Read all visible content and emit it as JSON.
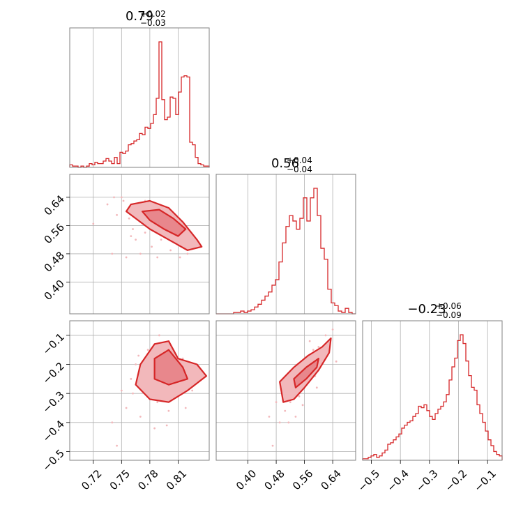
{
  "colors": {
    "accent": "#d62728",
    "fill_light": "#f2b8bb",
    "fill_mid": "#e8878c",
    "grid": "#b0b0b0",
    "frame": "#808080"
  },
  "chart_data": {
    "type": "corner",
    "parameters": [
      {
        "title_main": "0.79",
        "title_plus": "+0.02",
        "title_minus": "−0.03",
        "range": [
          0.695,
          0.843
        ],
        "ticks": [
          0.72,
          0.75,
          0.78,
          0.81
        ],
        "tick_labels": [
          "0.72",
          "0.75",
          "0.78",
          "0.81"
        ],
        "median": 0.79,
        "hist_counts": [
          2,
          1,
          1,
          0,
          1,
          0,
          1,
          3,
          2,
          4,
          3,
          3,
          5,
          7,
          5,
          3,
          8,
          3,
          12,
          11,
          13,
          18,
          19,
          21,
          22,
          27,
          26,
          32,
          31,
          35,
          42,
          55,
          100,
          54,
          38,
          40,
          56,
          55,
          42,
          60,
          72,
          73,
          72,
          20,
          18,
          8,
          3,
          2,
          1,
          1
        ]
      },
      {
        "title_main": "0.56",
        "title_plus": "+0.04",
        "title_minus": "−0.04",
        "range": [
          0.31,
          0.705
        ],
        "ticks": [
          0.4,
          0.48,
          0.56,
          0.64
        ],
        "tick_labels": [
          "0.40",
          "0.48",
          "0.56",
          "0.64"
        ],
        "median": 0.56,
        "hist_counts": [
          0,
          0,
          0,
          0,
          0,
          1,
          1,
          2,
          1,
          2,
          3,
          5,
          7,
          10,
          13,
          16,
          21,
          25,
          38,
          52,
          64,
          72,
          68,
          62,
          70,
          85,
          68,
          85,
          92,
          72,
          48,
          40,
          18,
          8,
          6,
          2,
          1,
          4,
          1,
          0
        ]
      },
      {
        "title_main": "−0.23",
        "title_plus": "+0.06",
        "title_minus": "−0.09",
        "range": [
          -0.53,
          -0.05
        ],
        "ticks": [
          -0.5,
          -0.4,
          -0.3,
          -0.2,
          -0.1
        ],
        "tick_labels": [
          "−0.5",
          "−0.4",
          "−0.3",
          "−0.2",
          "−0.1"
        ],
        "median": -0.23,
        "hist_counts": [
          1,
          1,
          2,
          3,
          4,
          2,
          3,
          5,
          7,
          11,
          12,
          14,
          16,
          18,
          22,
          24,
          26,
          27,
          30,
          32,
          37,
          36,
          38,
          34,
          30,
          28,
          32,
          35,
          37,
          40,
          45,
          55,
          64,
          70,
          82,
          86,
          80,
          68,
          58,
          50,
          48,
          38,
          32,
          26,
          20,
          14,
          10,
          6,
          4,
          3
        ]
      }
    ],
    "pairs": [
      {
        "x_param": 0,
        "y_param": 1,
        "correlation": -0.75,
        "scatter": [
          [
            0.72,
            0.565
          ],
          [
            0.735,
            0.62
          ],
          [
            0.74,
            0.48
          ],
          [
            0.745,
            0.59
          ],
          [
            0.75,
            0.64
          ],
          [
            0.755,
            0.47
          ],
          [
            0.758,
            0.58
          ],
          [
            0.76,
            0.6
          ],
          [
            0.762,
            0.55
          ],
          [
            0.765,
            0.52
          ],
          [
            0.77,
            0.62
          ],
          [
            0.772,
            0.57
          ],
          [
            0.775,
            0.54
          ],
          [
            0.78,
            0.6
          ],
          [
            0.782,
            0.5
          ],
          [
            0.785,
            0.56
          ],
          [
            0.79,
            0.58
          ],
          [
            0.792,
            0.52
          ],
          [
            0.795,
            0.55
          ],
          [
            0.8,
            0.56
          ],
          [
            0.802,
            0.49
          ],
          [
            0.805,
            0.53
          ],
          [
            0.81,
            0.51
          ],
          [
            0.813,
            0.55
          ],
          [
            0.815,
            0.5
          ],
          [
            0.82,
            0.48
          ],
          [
            0.825,
            0.52
          ],
          [
            0.83,
            0.5
          ],
          [
            0.742,
            0.64
          ],
          [
            0.752,
            0.63
          ],
          [
            0.77,
            0.48
          ],
          [
            0.788,
            0.47
          ],
          [
            0.8,
            0.61
          ],
          [
            0.812,
            0.47
          ],
          [
            0.76,
            0.53
          ],
          [
            0.775,
            0.63
          ]
        ],
        "contour_outer": [
          [
            0.76,
            0.62
          ],
          [
            0.78,
            0.63
          ],
          [
            0.8,
            0.61
          ],
          [
            0.815,
            0.57
          ],
          [
            0.83,
            0.52
          ],
          [
            0.835,
            0.5
          ],
          [
            0.82,
            0.49
          ],
          [
            0.8,
            0.52
          ],
          [
            0.78,
            0.55
          ],
          [
            0.765,
            0.58
          ],
          [
            0.755,
            0.6
          ]
        ],
        "contour_inner": [
          [
            0.772,
            0.6
          ],
          [
            0.79,
            0.605
          ],
          [
            0.805,
            0.58
          ],
          [
            0.818,
            0.55
          ],
          [
            0.81,
            0.53
          ],
          [
            0.795,
            0.55
          ],
          [
            0.78,
            0.575
          ]
        ]
      },
      {
        "x_param": 0,
        "y_param": 2,
        "correlation": -0.1,
        "scatter": [
          [
            0.74,
            -0.4
          ],
          [
            0.745,
            -0.48
          ],
          [
            0.75,
            -0.29
          ],
          [
            0.755,
            -0.35
          ],
          [
            0.76,
            -0.25
          ],
          [
            0.765,
            -0.2
          ],
          [
            0.77,
            -0.38
          ],
          [
            0.775,
            -0.3
          ],
          [
            0.778,
            -0.15
          ],
          [
            0.78,
            -0.24
          ],
          [
            0.785,
            -0.42
          ],
          [
            0.788,
            -0.33
          ],
          [
            0.79,
            -0.1
          ],
          [
            0.792,
            -0.2
          ],
          [
            0.795,
            -0.27
          ],
          [
            0.8,
            -0.36
          ],
          [
            0.805,
            -0.22
          ],
          [
            0.81,
            -0.31
          ],
          [
            0.815,
            -0.18
          ],
          [
            0.82,
            -0.25
          ],
          [
            0.825,
            -0.29
          ],
          [
            0.83,
            -0.21
          ],
          [
            0.772,
            -0.26
          ],
          [
            0.798,
            -0.41
          ],
          [
            0.808,
            -0.26
          ],
          [
            0.762,
            -0.3
          ],
          [
            0.786,
            -0.13
          ],
          [
            0.818,
            -0.35
          ],
          [
            0.768,
            -0.17
          ],
          [
            0.802,
            -0.15
          ]
        ],
        "contour_outer": [
          [
            0.77,
            -0.2
          ],
          [
            0.785,
            -0.13
          ],
          [
            0.8,
            -0.12
          ],
          [
            0.81,
            -0.18
          ],
          [
            0.83,
            -0.2
          ],
          [
            0.84,
            -0.24
          ],
          [
            0.82,
            -0.29
          ],
          [
            0.8,
            -0.33
          ],
          [
            0.78,
            -0.32
          ],
          [
            0.765,
            -0.27
          ]
        ],
        "contour_inner": [
          [
            0.785,
            -0.18
          ],
          [
            0.8,
            -0.15
          ],
          [
            0.815,
            -0.21
          ],
          [
            0.82,
            -0.25
          ],
          [
            0.8,
            -0.27
          ],
          [
            0.785,
            -0.25
          ]
        ]
      },
      {
        "x_param": 1,
        "y_param": 2,
        "correlation": 0.7,
        "scatter": [
          [
            0.46,
            -0.38
          ],
          [
            0.47,
            -0.48
          ],
          [
            0.48,
            -0.33
          ],
          [
            0.49,
            -0.4
          ],
          [
            0.5,
            -0.3
          ],
          [
            0.505,
            -0.36
          ],
          [
            0.51,
            -0.27
          ],
          [
            0.52,
            -0.33
          ],
          [
            0.525,
            -0.22
          ],
          [
            0.53,
            -0.29
          ],
          [
            0.54,
            -0.25
          ],
          [
            0.545,
            -0.31
          ],
          [
            0.55,
            -0.21
          ],
          [
            0.56,
            -0.26
          ],
          [
            0.565,
            -0.18
          ],
          [
            0.57,
            -0.23
          ],
          [
            0.58,
            -0.2
          ],
          [
            0.585,
            -0.15
          ],
          [
            0.59,
            -0.24
          ],
          [
            0.6,
            -0.14
          ],
          [
            0.61,
            -0.18
          ],
          [
            0.62,
            -0.1
          ],
          [
            0.63,
            -0.13
          ],
          [
            0.64,
            -0.08
          ],
          [
            0.65,
            -0.19
          ],
          [
            0.535,
            -0.38
          ],
          [
            0.555,
            -0.34
          ],
          [
            0.595,
            -0.28
          ],
          [
            0.515,
            -0.4
          ],
          [
            0.575,
            -0.12
          ]
        ],
        "contour_outer": [
          [
            0.49,
            -0.26
          ],
          [
            0.53,
            -0.21
          ],
          [
            0.57,
            -0.17
          ],
          [
            0.61,
            -0.14
          ],
          [
            0.635,
            -0.11
          ],
          [
            0.63,
            -0.16
          ],
          [
            0.6,
            -0.22
          ],
          [
            0.56,
            -0.28
          ],
          [
            0.53,
            -0.32
          ],
          [
            0.5,
            -0.33
          ]
        ],
        "contour_inner": [
          [
            0.53,
            -0.25
          ],
          [
            0.565,
            -0.21
          ],
          [
            0.6,
            -0.18
          ],
          [
            0.595,
            -0.21
          ],
          [
            0.565,
            -0.25
          ],
          [
            0.535,
            -0.28
          ]
        ]
      }
    ]
  }
}
